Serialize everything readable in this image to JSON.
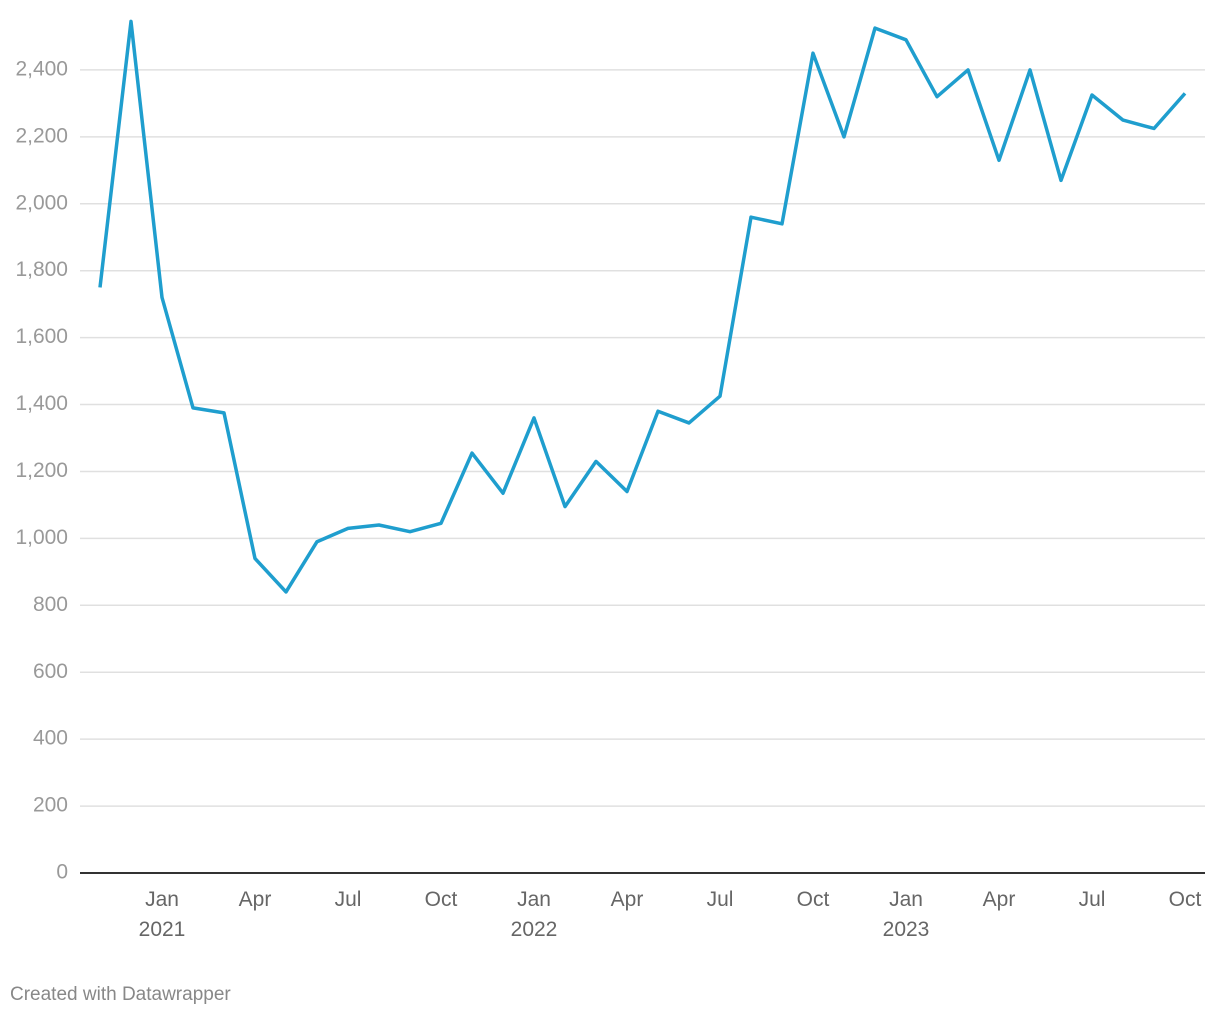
{
  "chart_data": {
    "type": "line",
    "categories": [
      null,
      null,
      "Jan 2021",
      null,
      null,
      "Apr",
      null,
      null,
      "Jul",
      null,
      null,
      "Oct",
      null,
      null,
      "Jan 2022",
      null,
      null,
      "Apr",
      null,
      null,
      "Jul",
      null,
      null,
      "Oct",
      null,
      null,
      "Jan 2023",
      null,
      null,
      "Apr",
      null,
      null,
      "Jul",
      null,
      null,
      "Oct"
    ],
    "values": [
      1750,
      2545,
      1720,
      1390,
      1375,
      940,
      840,
      990,
      1030,
      1040,
      1020,
      1045,
      1255,
      1135,
      1360,
      1095,
      1230,
      1140,
      1380,
      1345,
      1425,
      1960,
      1940,
      2450,
      2200,
      2525,
      2490,
      2320,
      2400,
      2130,
      2400,
      2070,
      2325,
      2250,
      2225,
      2330
    ],
    "color": "#1f9ece",
    "ylim": [
      0,
      2600
    ],
    "yticks": [
      0,
      200,
      400,
      600,
      800,
      {
        "value": 1000,
        "label": "1,000"
      },
      {
        "value": 1200,
        "label": "1,200"
      },
      {
        "value": 1400,
        "label": "1,400"
      },
      {
        "value": 1600,
        "label": "1,600"
      },
      {
        "value": 1800,
        "label": "1,800"
      },
      {
        "value": 2000,
        "label": "2,000"
      },
      {
        "value": 2200,
        "label": "2,200"
      },
      {
        "value": 2400,
        "label": "2,400"
      }
    ],
    "grid": true,
    "footer": "Created with Datawrapper"
  }
}
